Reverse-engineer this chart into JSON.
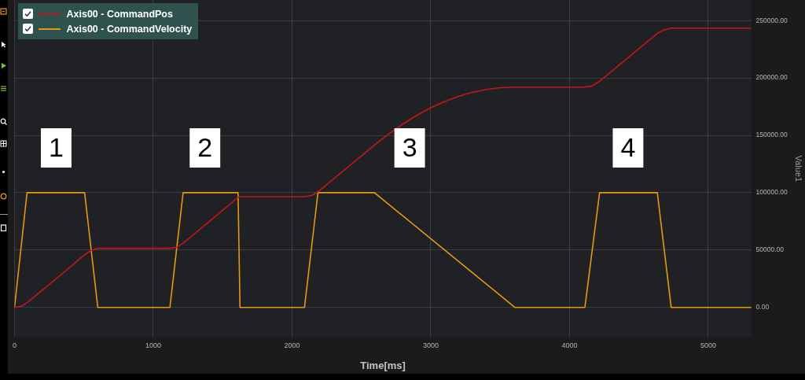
{
  "chart_data": {
    "type": "line",
    "xlabel": "Time[ms]",
    "ylabel": "Value1",
    "xlim": [
      0,
      5310
    ],
    "xticks": [
      0,
      1000,
      2000,
      3000,
      4000,
      5000
    ],
    "ylim": [
      -26000,
      268000
    ],
    "yticks": [
      {
        "value": 0,
        "label": "0.00"
      },
      {
        "value": 50000,
        "label": "50000.00"
      },
      {
        "value": 100000,
        "label": "100000.00"
      },
      {
        "value": 150000,
        "label": "150000.00"
      },
      {
        "value": 200000,
        "label": "200000.00"
      },
      {
        "value": 250000,
        "label": "250000.00"
      }
    ],
    "grid": true,
    "legend": "top left",
    "marker": "none",
    "series": [
      {
        "name": "Axis00 - CommandPos",
        "color": "#c8141c",
        "x": [
          0,
          50,
          100,
          200,
          300,
          400,
          500,
          550,
          600,
          1120,
          1170,
          1215,
          1400,
          1611,
          1625,
          2090,
          2140,
          2190,
          2400,
          2594,
          2700,
          2800,
          2900,
          3000,
          3100,
          3200,
          3300,
          3400,
          3500,
          3606,
          4110,
          4160,
          4215,
          4400,
          4633,
          4683,
          4733,
          5310
        ],
        "values": [
          0,
          1000,
          5000,
          15000,
          25000,
          35000,
          45500,
          49500,
          51500,
          51500,
          52500,
          56000,
          74500,
          96000,
          96500,
          96500,
          97500,
          101000,
          122000,
          141500,
          151500,
          160000,
          167500,
          174000,
          179500,
          184000,
          187500,
          190000,
          191500,
          192000,
          192000,
          193000,
          197000,
          215500,
          239000,
          242000,
          243500,
          243500
        ]
      },
      {
        "name": "Axis00 - CommandVelocity",
        "color": "#e39a12",
        "x": [
          0,
          90,
          505,
          600,
          1120,
          1215,
          1611,
          1625,
          2090,
          2187,
          2594,
          3606,
          4111,
          4217,
          4633,
          4733,
          5310
        ],
        "values": [
          0,
          100000,
          100000,
          0,
          0,
          100000,
          100000,
          0,
          0,
          100000,
          100000,
          0,
          0,
          100000,
          100000,
          0,
          0
        ]
      }
    ],
    "annotations": [
      "1",
      "2",
      "3",
      "4"
    ]
  }
}
